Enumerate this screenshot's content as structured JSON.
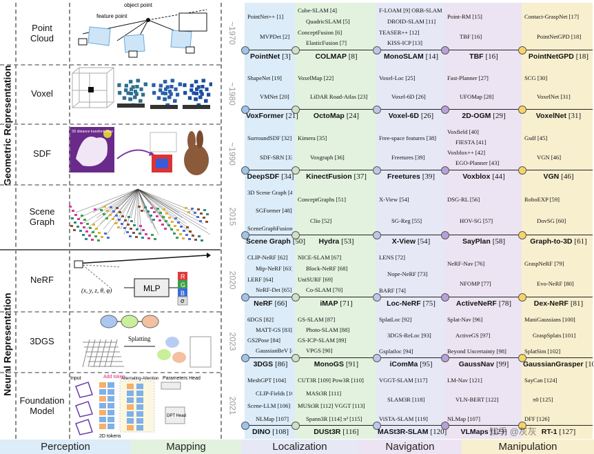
{
  "groups": [
    {
      "label": "Geometric Representation"
    },
    {
      "label": "Neural Representation"
    }
  ],
  "colors": {
    "perception": "#dcecf8",
    "mapping": "#e2f2de",
    "localization": "#e6e8f6",
    "navigation": "#ece4f2",
    "manipulation": "#f8efcf",
    "dot_colors": [
      "#9ec4ea",
      "#cfdfc8",
      "#bcc8e6",
      "#b5a2d6",
      "#f5d46a"
    ]
  },
  "rows": [
    {
      "name": "Point\nCloud",
      "year": "~1970",
      "illustration": {
        "labels": [
          "object point",
          "feature point",
          "P",
          "P",
          "P",
          "P",
          "P"
        ]
      },
      "columns": [
        {
          "items": [
            "PointNet++ [1]",
            "MVPDet [2]"
          ],
          "milestone": {
            "name": "PointNet",
            "ref": "[3]"
          }
        },
        {
          "items": [
            "Cube-SLAM [4]",
            "QuadricSLAM [5]",
            "ConceptFusion [6]",
            "ElasticFusion [7]"
          ],
          "milestone": {
            "name": "COLMAP",
            "ref": "[8]"
          }
        },
        {
          "items": [
            "F-LOAM [9]  ORB-SLAM2 [10]",
            "DROID-SLAM [11]",
            "TEASER++ [12]",
            "KISS-ICP [13]"
          ],
          "milestone": {
            "name": "MonoSLAM",
            "ref": "[14]"
          }
        },
        {
          "items": [
            "Point-RM [15]",
            "TBF [16]"
          ],
          "milestone": {
            "name": "TBF",
            "ref": "[16]"
          }
        },
        {
          "items": [
            "Contact-GraspNet [17]",
            "PointNetGPD [18]"
          ],
          "milestone": {
            "name": "PointNetGPD",
            "ref": "[18]"
          }
        }
      ]
    },
    {
      "name": "Voxel",
      "year": "~1980",
      "columns": [
        {
          "items": [
            "ShapeNet [19]",
            "VMNet [20]"
          ],
          "milestone": {
            "name": "VoxFormer",
            "ref": "[21]"
          }
        },
        {
          "items": [
            "VoxelMap [22]",
            "LiDAR Road-Atlas [23]"
          ],
          "milestone": {
            "name": "OctoMap",
            "ref": "[24]"
          }
        },
        {
          "items": [
            "Voxel-Loc [25]",
            "Voxel-6D [26]"
          ],
          "milestone": {
            "name": "Voxel-6D",
            "ref": "[26]"
          }
        },
        {
          "items": [
            "Fast-Planner [27]",
            "UFOMap [28]"
          ],
          "milestone": {
            "name": "2D-OGM",
            "ref": "[29]"
          }
        },
        {
          "items": [
            "SCG [30]",
            "VoxelNet [31]"
          ],
          "milestone": {
            "name": "VoxelNet",
            "ref": "[31]"
          }
        }
      ]
    },
    {
      "name": "SDF",
      "year": "~1990",
      "illustration": {
        "labels": [
          "2D distance transform map",
          "(a)",
          "(b)",
          "(c)"
        ]
      },
      "columns": [
        {
          "items": [
            "SurroundSDF [32]",
            "SDF-SRN [33]"
          ],
          "milestone": {
            "name": "DeepSDF",
            "ref": "[34]"
          }
        },
        {
          "items": [
            "Kimera [35]",
            "Voxgraph [36]"
          ],
          "milestone": {
            "name": "KinectFusion",
            "ref": "[37]"
          }
        },
        {
          "items": [
            "Free-space features [38]",
            "Freetures [39]"
          ],
          "milestone": {
            "name": "Freetures",
            "ref": "[39]"
          }
        },
        {
          "items": [
            "Voxfield [40]",
            "FIESTA [41]",
            "Voxblox++ [42]",
            "EGO-Planner [43]"
          ],
          "milestone": {
            "name": "Voxblox",
            "ref": "[44]"
          }
        },
        {
          "items": [
            "Gsdf [45]",
            "VGN [46]"
          ],
          "milestone": {
            "name": "VGN",
            "ref": "[46]"
          }
        }
      ]
    },
    {
      "name": "Scene\nGraph",
      "year": "2015",
      "columns": [
        {
          "items": [
            "3D Scene Graph [47]",
            "SGFormer [48]",
            "SceneGraphFusion [49]"
          ],
          "milestone": {
            "name": "Scene Graph",
            "ref": "[50]"
          }
        },
        {
          "items": [
            "ConceptGraphs [51]",
            "Clio [52]"
          ],
          "milestone": {
            "name": "Hydra",
            "ref": "[53]"
          }
        },
        {
          "items": [
            "X-View [54]",
            "SG-Reg [55]"
          ],
          "milestone": {
            "name": "X-View",
            "ref": "[54]"
          }
        },
        {
          "items": [
            "DSG-RL [56]",
            "HOV-SG [57]"
          ],
          "milestone": {
            "name": "SayPlan",
            "ref": "[58]"
          }
        },
        {
          "items": [
            "RoboEXP [59]",
            "DovSG [60]"
          ],
          "milestone": {
            "name": "Graph-to-3D",
            "ref": "[61]"
          }
        }
      ]
    },
    {
      "name": "NeRF",
      "year": "2020",
      "illustration": {
        "labels": [
          "(x, y, z, θ, φ)",
          "MLP",
          "R",
          "G",
          "B",
          "σ"
        ]
      },
      "columns": [
        {
          "items": [
            "CLIP-NeRF [62]",
            "Mip-NeRF [63]",
            "LERF [64]",
            "NeRF-Det [65]"
          ],
          "milestone": {
            "name": "NeRF",
            "ref": "[66]"
          }
        },
        {
          "items": [
            "NICE-SLAM [67]",
            "Block-NeRF [68]",
            "UniSURF [69]",
            "Co-SLAM [70]"
          ],
          "milestone": {
            "name": "iMAP",
            "ref": "[71]"
          }
        },
        {
          "items": [
            "LENS [72]",
            "Nope-NeRF [73]",
            "BARF [74]"
          ],
          "milestone": {
            "name": "Loc-NeRF",
            "ref": "[75]"
          }
        },
        {
          "items": [
            "NeRF-Nav [76]",
            "NFOMP [77]"
          ],
          "milestone": {
            "name": "ActiveNeRF",
            "ref": "[78]"
          }
        },
        {
          "items": [
            "GraspNeRF [79]",
            "Evo-NeRF [80]"
          ],
          "milestone": {
            "name": "Dex-NeRF",
            "ref": "[81]"
          }
        }
      ]
    },
    {
      "name": "3DGS",
      "year": "2023",
      "illustration": {
        "labels": [
          "Splatting",
          "3D Position",
          "Scale",
          "Rotation",
          "Opacity",
          "Color"
        ]
      },
      "columns": [
        {
          "items": [
            "6DGS [82]",
            "MATT-GS [83]",
            "GS2Pose [84]",
            "GaussianBeV [85]"
          ],
          "milestone": {
            "name": "3DGS",
            "ref": "[86]"
          }
        },
        {
          "items": [
            "GS-SLAM [87]",
            "Photo-SLAM [88]",
            "GS-ICP-SLAM [89]",
            "VPGS [90]"
          ],
          "milestone": {
            "name": "MonoGS",
            "ref": "[91]"
          }
        },
        {
          "items": [
            "SplatLoc [92]",
            "3DGS-ReLoc [93]",
            "Gsplatloc [94]"
          ],
          "milestone": {
            "name": "iComMa",
            "ref": "[95]"
          }
        },
        {
          "items": [
            "Splat-Nav [96]",
            "ActiveGS [97]",
            "Beyond Uncertainty [98]"
          ],
          "milestone": {
            "name": "GaussNav",
            "ref": "[99]"
          }
        },
        {
          "items": [
            "ManiGaussians [100]",
            "GraspSplats [101]",
            "SplatSim [102]"
          ],
          "milestone": {
            "name": "GaussianGrasper",
            "ref": "[103]"
          }
        }
      ]
    },
    {
      "name": "Foundation\nModel",
      "year": "2021",
      "illustration": {
        "labels": [
          "Input",
          "Add token",
          "Alternating-Attention",
          "Parameters Head",
          "2D tokens",
          "DPT Head"
        ]
      },
      "columns": [
        {
          "items": [
            "MeshGPT [104]",
            "CLIP-Fields [105]",
            "Scene-LLM [106]",
            "NLMap [107]"
          ],
          "milestone": {
            "name": "DINO",
            "ref": "[108]"
          }
        },
        {
          "items": [
            "CUT3R [109]  Pow3R [110]",
            "MASt3R [111]",
            "MUSt3R [112]  VGGT [113]",
            "Spann3R [114]  π³ [115]"
          ],
          "milestone": {
            "name": "DUSt3R",
            "ref": "[116]"
          }
        },
        {
          "items": [
            "VGGT-SLAM [117]",
            "SLAM3R [118]",
            "ViSTA-SLAM [119]"
          ],
          "milestone": {
            "name": "MASt3R-SLAM",
            "ref": "[120]"
          }
        },
        {
          "items": [
            "LM-Nav [121]",
            "VLN-BERT [122]",
            "NLMap [107]"
          ],
          "milestone": {
            "name": "VLMaps",
            "ref": "[123]"
          }
        },
        {
          "items": [
            "SayCan [124]",
            "π0 [125]",
            "DFF [126]"
          ],
          "milestone": {
            "name": "RT-1",
            "ref": "[127]"
          }
        }
      ]
    }
  ],
  "footer": [
    "Perception",
    "Mapping",
    "Localization",
    "Navigation",
    "Manipulation"
  ],
  "watermark": "知乎 @灰灰"
}
